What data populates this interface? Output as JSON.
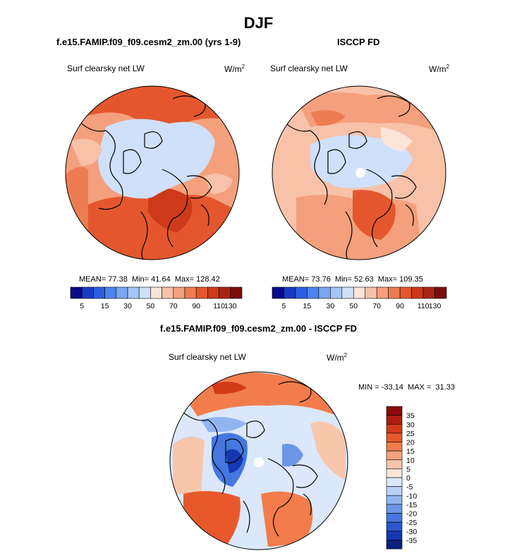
{
  "figure": {
    "season": "DJF",
    "left_title": "f.e15.FAMIP.f09_f09.cesm2_zm.00 (yrs 1-9)",
    "right_title": "ISCCP FD",
    "diff_title": "f.e15.FAMIP.f09_f09.cesm2_zm.00 - ISCCP FD",
    "units_base": "W/m",
    "units_exp": "2"
  },
  "chart_data": [
    {
      "type": "polar-map",
      "id": "model",
      "variable": "Surf clearsky net LW",
      "units": "W/m2",
      "mean_label": "MEAN=",
      "min_label": "Min=",
      "max_label": "Max=",
      "mean": "77.38",
      "min": "41.64",
      "max": "128.42",
      "colorbar": {
        "levels": [
          5,
          15,
          30,
          50,
          70,
          90,
          110,
          130
        ],
        "colors": [
          "#0a0a8c",
          "#1a3bc4",
          "#2b5fe0",
          "#4f84ee",
          "#7aa6f4",
          "#a5c4f7",
          "#cfe0fb",
          "#fbe4d8",
          "#f8c2a8",
          "#f4a07c",
          "#ee7c52",
          "#e4572e",
          "#cc3a1a",
          "#a82412",
          "#7a0f0a"
        ]
      }
    },
    {
      "type": "polar-map",
      "id": "obs",
      "variable": "Surf clearsky net LW",
      "units": "W/m2",
      "mean_label": "MEAN=",
      "min_label": "Min=",
      "max_label": "Max=",
      "mean": "73.76",
      "min": "52.63",
      "max": "109.35",
      "colorbar": {
        "levels": [
          5,
          15,
          30,
          50,
          70,
          90,
          110,
          130
        ],
        "colors": [
          "#0a0a8c",
          "#1a3bc4",
          "#2b5fe0",
          "#4f84ee",
          "#7aa6f4",
          "#a5c4f7",
          "#cfe0fb",
          "#fbe4d8",
          "#f8c2a8",
          "#f4a07c",
          "#ee7c52",
          "#e4572e",
          "#cc3a1a",
          "#a82412",
          "#7a0f0a"
        ]
      }
    },
    {
      "type": "polar-map",
      "id": "diff",
      "variable": "Surf clearsky net LW",
      "units": "W/m2",
      "min_max_label": "MIN = -33.14  MAX =  31.33",
      "min": -33.14,
      "max": 31.33,
      "colorbar": {
        "levels": [
          35,
          30,
          25,
          20,
          15,
          10,
          5,
          0,
          -5,
          -10,
          -15,
          -20,
          -25,
          -30,
          -35
        ],
        "colors": [
          "#8b0a0a",
          "#b01e10",
          "#d33a18",
          "#e9582a",
          "#f27c4c",
          "#f5a27e",
          "#f8c6ab",
          "#fbe6da",
          "#dbe8fb",
          "#b8d0f6",
          "#92b5f0",
          "#6b96e8",
          "#4577df",
          "#2a56cf",
          "#1537b0",
          "#0c1f7e"
        ]
      }
    }
  ]
}
